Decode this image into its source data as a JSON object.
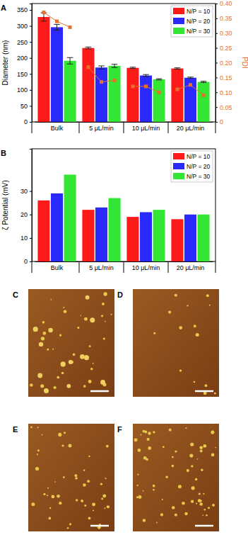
{
  "chart_data": [
    {
      "type": "bar",
      "title": "A",
      "categories": [
        "Bulk",
        "5 μL/min",
        "10 μL/min",
        "20 μL/min"
      ],
      "y_label": "Diameter (nm)",
      "y2_label": "PDI",
      "ylim": [
        0,
        370
      ],
      "yticks": [
        0,
        50,
        100,
        150,
        200,
        250,
        300,
        350
      ],
      "y2lim": [
        0,
        0.4
      ],
      "y2ticks": [
        0,
        0.05,
        {
          "value": 0.1,
          "label": "0.10"
        },
        0.15,
        {
          "value": 0.2,
          "label": "0.20"
        },
        0.25,
        {
          "value": 0.3,
          "label": "0.30"
        },
        0.35,
        {
          "value": 0.4,
          "label": "0.40"
        }
      ],
      "legend": "upper right",
      "series": [
        {
          "name": "N/P = 10",
          "color": "#ff1a1a",
          "values": [
            328,
            231,
            169,
            167
          ],
          "errors": [
            13,
            3,
            2,
            2
          ]
        },
        {
          "name": "N/P = 20",
          "color": "#2a2aff",
          "values": [
            296,
            170,
            145,
            138
          ],
          "errors": [
            9,
            5,
            3,
            2
          ]
        },
        {
          "name": "N/P = 30",
          "color": "#33e633",
          "values": [
            191,
            175,
            133,
            125
          ],
          "errors": [
            10,
            5,
            2,
            2
          ]
        },
        {
          "type": "line",
          "axis": "y2",
          "color": "#e8702a",
          "marker": "square",
          "values": [
            [
              0.37,
              0.34,
              0.32
            ],
            [
              0.185,
              0.135,
              0.14
            ],
            [
              0.12,
              0.12,
              0.1
            ],
            [
              0.11,
              0.125,
              0.09
            ]
          ]
        }
      ]
    },
    {
      "type": "bar",
      "title": "B",
      "categories": [
        "Bulk",
        "5 μL/min",
        "10 μL/min",
        "20 μL/min"
      ],
      "y_label": "ζ Potential (mV)",
      "ylim": [
        0,
        48
      ],
      "yticks": [
        0,
        10,
        20,
        30
      ],
      "legend": "upper right",
      "series": [
        {
          "name": "N/P = 10",
          "color": "#ff1a1a",
          "values": [
            26,
            22,
            19,
            18
          ]
        },
        {
          "name": "N/P = 20",
          "color": "#2a2aff",
          "values": [
            29,
            23,
            21,
            20
          ]
        },
        {
          "name": "N/P = 30",
          "color": "#33e633",
          "values": [
            37,
            27,
            22,
            20
          ]
        }
      ]
    }
  ],
  "images": [
    {
      "label": "C"
    },
    {
      "label": "D"
    },
    {
      "label": "E"
    },
    {
      "label": "F"
    }
  ]
}
